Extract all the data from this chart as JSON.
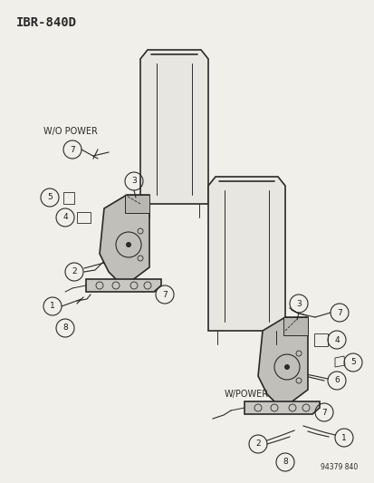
{
  "bg_color": "#f0efea",
  "title_text": "IBR-840D",
  "watermark": "94379 840",
  "wo_power_label": "W/O POWER",
  "w_power_label": "W/POWER",
  "line_color": "#2a2a2a",
  "fill_color": "#c8c8c8",
  "part_label_color": "#1a1a1a",
  "title_fontsize": 10,
  "part_fontsize": 6.5,
  "label_fontsize": 7
}
